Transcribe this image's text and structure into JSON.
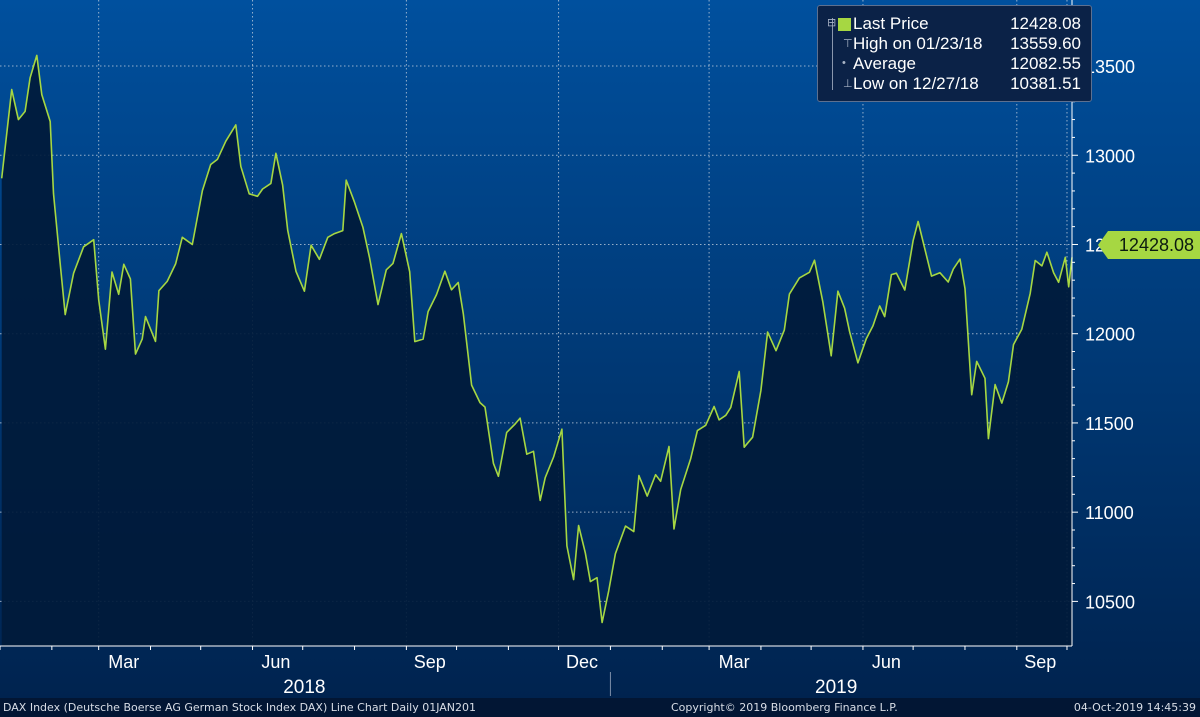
{
  "chart_data": {
    "type": "area",
    "series_name": "Last Price",
    "x_tick_labels": [
      "Mar",
      "Jun",
      "Sep",
      "Dec",
      "Mar",
      "Jun",
      "Sep"
    ],
    "year_labels": [
      "2018",
      "2019"
    ],
    "y_ticks": [
      10500,
      11000,
      11500,
      12000,
      12500,
      13000,
      13500
    ],
    "y_tick_labels": [
      "10500",
      "11000",
      "11500",
      "12000",
      "12500",
      "13000",
      "13500"
    ],
    "ylim": [
      10250,
      13870
    ],
    "xlim": [
      "2018-01-01",
      "2019-10-04"
    ],
    "grid": true,
    "legend_position": "top-right",
    "colors": {
      "line": "#a6d742",
      "background_top": "#00509e",
      "background_bottom": "#00234f",
      "fill": "#001a3a"
    },
    "points": [
      [
        "2018-01-02",
        12871
      ],
      [
        "2018-01-08",
        13368
      ],
      [
        "2018-01-12",
        13200
      ],
      [
        "2018-01-16",
        13246
      ],
      [
        "2018-01-19",
        13434
      ],
      [
        "2018-01-23",
        13559.6
      ],
      [
        "2018-01-26",
        13340
      ],
      [
        "2018-01-31",
        13189
      ],
      [
        "2018-02-02",
        12785
      ],
      [
        "2018-02-06",
        12392
      ],
      [
        "2018-02-09",
        12107
      ],
      [
        "2018-02-14",
        12339
      ],
      [
        "2018-02-20",
        12487
      ],
      [
        "2018-02-26",
        12527
      ],
      [
        "2018-03-01",
        12190
      ],
      [
        "2018-03-05",
        11913
      ],
      [
        "2018-03-09",
        12346
      ],
      [
        "2018-03-13",
        12221
      ],
      [
        "2018-03-16",
        12389
      ],
      [
        "2018-03-20",
        12307
      ],
      [
        "2018-03-23",
        11886
      ],
      [
        "2018-03-27",
        11970
      ],
      [
        "2018-03-29",
        12096
      ],
      [
        "2018-04-04",
        11957
      ],
      [
        "2018-04-06",
        12241
      ],
      [
        "2018-04-11",
        12293
      ],
      [
        "2018-04-16",
        12391
      ],
      [
        "2018-04-20",
        12540
      ],
      [
        "2018-04-26",
        12500
      ],
      [
        "2018-05-02",
        12802
      ],
      [
        "2018-05-07",
        12948
      ],
      [
        "2018-05-11",
        12977
      ],
      [
        "2018-05-16",
        13079
      ],
      [
        "2018-05-22",
        13170
      ],
      [
        "2018-05-25",
        12938
      ],
      [
        "2018-05-30",
        12784
      ],
      [
        "2018-06-04",
        12770
      ],
      [
        "2018-06-07",
        12811
      ],
      [
        "2018-06-12",
        12842
      ],
      [
        "2018-06-15",
        13011
      ],
      [
        "2018-06-19",
        12834
      ],
      [
        "2018-06-22",
        12580
      ],
      [
        "2018-06-27",
        12349
      ],
      [
        "2018-07-02",
        12238
      ],
      [
        "2018-07-06",
        12496
      ],
      [
        "2018-07-11",
        12417
      ],
      [
        "2018-07-16",
        12540
      ],
      [
        "2018-07-20",
        12561
      ],
      [
        "2018-07-25",
        12578
      ],
      [
        "2018-07-27",
        12860
      ],
      [
        "2018-08-01",
        12737
      ],
      [
        "2018-08-06",
        12597
      ],
      [
        "2018-08-10",
        12424
      ],
      [
        "2018-08-15",
        12163
      ],
      [
        "2018-08-20",
        12358
      ],
      [
        "2018-08-24",
        12394
      ],
      [
        "2018-08-29",
        12561
      ],
      [
        "2018-09-03",
        12347
      ],
      [
        "2018-09-06",
        11956
      ],
      [
        "2018-09-11",
        11970
      ],
      [
        "2018-09-14",
        12124
      ],
      [
        "2018-09-19",
        12219
      ],
      [
        "2018-09-24",
        12350
      ],
      [
        "2018-09-28",
        12246
      ],
      [
        "2018-10-02",
        12287
      ],
      [
        "2018-10-05",
        12112
      ],
      [
        "2018-10-10",
        11712
      ],
      [
        "2018-10-15",
        11614
      ],
      [
        "2018-10-18",
        11589
      ],
      [
        "2018-10-23",
        11274
      ],
      [
        "2018-10-26",
        11201
      ],
      [
        "2018-10-31",
        11447
      ],
      [
        "2018-11-05",
        11494
      ],
      [
        "2018-11-08",
        11527
      ],
      [
        "2018-11-12",
        11325
      ],
      [
        "2018-11-16",
        11341
      ],
      [
        "2018-11-20",
        11066
      ],
      [
        "2018-11-23",
        11193
      ],
      [
        "2018-11-28",
        11309
      ],
      [
        "2018-12-03",
        11465
      ],
      [
        "2018-12-06",
        10811
      ],
      [
        "2018-12-10",
        10622
      ],
      [
        "2018-12-13",
        10925
      ],
      [
        "2018-12-17",
        10772
      ],
      [
        "2018-12-20",
        10611
      ],
      [
        "2018-12-24",
        10633
      ],
      [
        "2018-12-27",
        10381.51
      ],
      [
        "2018-12-31",
        10559
      ],
      [
        "2019-01-04",
        10767
      ],
      [
        "2019-01-10",
        10922
      ],
      [
        "2019-01-15",
        10891
      ],
      [
        "2019-01-18",
        11205
      ],
      [
        "2019-01-23",
        11090
      ],
      [
        "2019-01-28",
        11210
      ],
      [
        "2019-01-31",
        11173
      ],
      [
        "2019-02-05",
        11368
      ],
      [
        "2019-02-08",
        10906
      ],
      [
        "2019-02-12",
        11127
      ],
      [
        "2019-02-18",
        11300
      ],
      [
        "2019-02-22",
        11457
      ],
      [
        "2019-02-27",
        11487
      ],
      [
        "2019-03-04",
        11592
      ],
      [
        "2019-03-07",
        11517
      ],
      [
        "2019-03-11",
        11543
      ],
      [
        "2019-03-14",
        11587
      ],
      [
        "2019-03-19",
        11788
      ],
      [
        "2019-03-22",
        11364
      ],
      [
        "2019-03-27",
        11420
      ],
      [
        "2019-04-01",
        11682
      ],
      [
        "2019-04-05",
        12009
      ],
      [
        "2019-04-10",
        11905
      ],
      [
        "2019-04-15",
        12020
      ],
      [
        "2019-04-18",
        12222
      ],
      [
        "2019-04-24",
        12313
      ],
      [
        "2019-04-30",
        12344
      ],
      [
        "2019-05-03",
        12412
      ],
      [
        "2019-05-08",
        12179
      ],
      [
        "2019-05-13",
        11876
      ],
      [
        "2019-05-17",
        12238
      ],
      [
        "2019-05-21",
        12143
      ],
      [
        "2019-05-24",
        12011
      ],
      [
        "2019-05-29",
        11837
      ],
      [
        "2019-06-03",
        11972
      ],
      [
        "2019-06-07",
        12045
      ],
      [
        "2019-06-11",
        12155
      ],
      [
        "2019-06-14",
        12096
      ],
      [
        "2019-06-18",
        12331
      ],
      [
        "2019-06-21",
        12339
      ],
      [
        "2019-06-26",
        12245
      ],
      [
        "2019-07-01",
        12521
      ],
      [
        "2019-07-04",
        12629
      ],
      [
        "2019-07-09",
        12437
      ],
      [
        "2019-07-12",
        12323
      ],
      [
        "2019-07-17",
        12342
      ],
      [
        "2019-07-22",
        12290
      ],
      [
        "2019-07-25",
        12362
      ],
      [
        "2019-07-29",
        12418
      ],
      [
        "2019-08-01",
        12253
      ],
      [
        "2019-08-05",
        11658
      ],
      [
        "2019-08-08",
        11845
      ],
      [
        "2019-08-13",
        11750
      ],
      [
        "2019-08-15",
        11412
      ],
      [
        "2019-08-19",
        11715
      ],
      [
        "2019-08-23",
        11611
      ],
      [
        "2019-08-27",
        11730
      ],
      [
        "2019-08-30",
        11939
      ],
      [
        "2019-09-04",
        12025
      ],
      [
        "2019-09-09",
        12226
      ],
      [
        "2019-09-12",
        12410
      ],
      [
        "2019-09-16",
        12380
      ],
      [
        "2019-09-19",
        12457
      ],
      [
        "2019-09-23",
        12342
      ],
      [
        "2019-09-26",
        12288
      ],
      [
        "2019-09-30",
        12428
      ],
      [
        "2019-10-02",
        12263
      ],
      [
        "2019-10-04",
        12428.08
      ]
    ],
    "legend": [
      {
        "name": "Last Price",
        "value": "12428.08"
      },
      {
        "name": "High on 01/23/18",
        "value": "13559.60"
      },
      {
        "name": "Average",
        "value": "12082.55"
      },
      {
        "name": "Low on 12/27/18",
        "value": "10381.51"
      }
    ],
    "last_price_label": "12428.08"
  },
  "footer": {
    "left": "DAX Index (Deutsche Boerse AG German Stock Index DAX) Line Chart  Daily 01JAN201",
    "center": "Copyright© 2019 Bloomberg Finance L.P.",
    "right": "04-Oct-2019 14:45:39"
  },
  "legend_marks": [
    "⊟",
    "⊤",
    "•",
    "⊥"
  ]
}
